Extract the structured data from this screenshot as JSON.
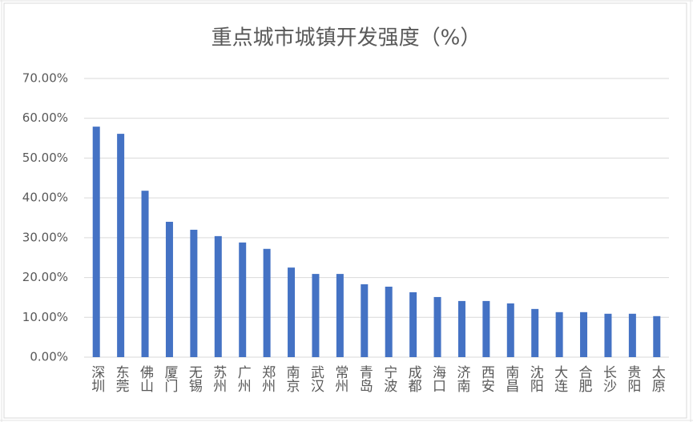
{
  "chart_data": {
    "type": "bar",
    "title": "重点城市城镇开发强度（%）",
    "categories": [
      "深圳",
      "东莞",
      "佛山",
      "厦门",
      "无锡",
      "苏州",
      "广州",
      "郑州",
      "南京",
      "武汉",
      "常州",
      "青岛",
      "宁波",
      "成都",
      "海口",
      "济南",
      "西安",
      "南昌",
      "沈阳",
      "大连",
      "合肥",
      "长沙",
      "贵阳",
      "太原"
    ],
    "values": [
      57.9,
      56.1,
      41.8,
      34.0,
      32.0,
      30.4,
      28.8,
      27.2,
      22.5,
      20.9,
      20.9,
      18.3,
      17.7,
      16.3,
      15.1,
      14.1,
      14.1,
      13.5,
      12.1,
      11.3,
      11.3,
      10.9,
      10.9,
      10.3
    ],
    "color": "#4472c4",
    "ylim": [
      0,
      70
    ],
    "yticks": [
      {
        "value": 0,
        "label": "0.00%"
      },
      {
        "value": 10,
        "label": "10.00%"
      },
      {
        "value": 20,
        "label": "20.00%"
      },
      {
        "value": 30,
        "label": "30.00%"
      },
      {
        "value": 40,
        "label": "40.00%"
      },
      {
        "value": 50,
        "label": "50.00%"
      },
      {
        "value": 60,
        "label": "60.00%"
      },
      {
        "value": 70,
        "label": "70.00%"
      }
    ],
    "grid": true
  }
}
